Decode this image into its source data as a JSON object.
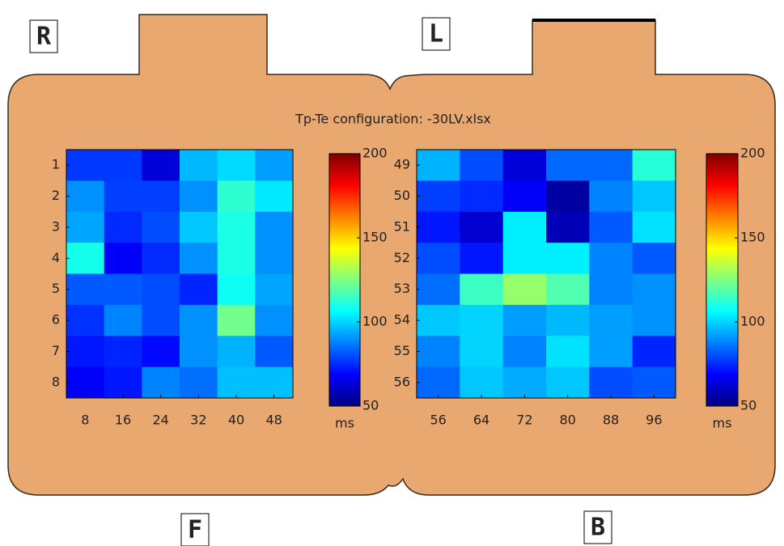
{
  "title": "Tp-Te configuration: -30LV.xlsx",
  "corner_labels": [
    "R",
    "L",
    "F",
    "B"
  ],
  "chart_data": [
    {
      "type": "heatmap",
      "colormap": "jet",
      "x": [
        8,
        16,
        24,
        32,
        40,
        48
      ],
      "y": [
        1,
        2,
        3,
        4,
        5,
        6,
        7,
        8
      ],
      "values": [
        [
          77,
          77,
          63,
          96,
          101,
          92
        ],
        [
          90,
          78,
          78,
          90,
          113,
          103
        ],
        [
          93,
          75,
          80,
          98,
          110,
          90
        ],
        [
          109,
          68,
          75,
          90,
          110,
          90
        ],
        [
          82,
          82,
          80,
          74,
          108,
          93
        ],
        [
          76,
          88,
          80,
          90,
          123,
          90
        ],
        [
          72,
          74,
          70,
          90,
          95,
          82
        ],
        [
          68,
          72,
          88,
          85,
          97,
          97
        ]
      ],
      "zlim": [
        50,
        200
      ],
      "zticks": [
        50,
        100,
        150,
        200
      ],
      "zlabel": "ms"
    },
    {
      "type": "heatmap",
      "colormap": "jet",
      "x": [
        56,
        64,
        72,
        80,
        88,
        96
      ],
      "y": [
        49,
        50,
        51,
        52,
        53,
        54,
        55,
        56
      ],
      "values": [
        [
          95,
          80,
          63,
          84,
          84,
          112
        ],
        [
          78,
          75,
          68,
          55,
          88,
          98
        ],
        [
          72,
          62,
          104,
          58,
          82,
          102
        ],
        [
          80,
          72,
          104,
          104,
          88,
          82
        ],
        [
          85,
          115,
          128,
          118,
          88,
          90
        ],
        [
          98,
          100,
          92,
          96,
          92,
          90
        ],
        [
          88,
          100,
          88,
          102,
          92,
          74
        ],
        [
          84,
          98,
          94,
          98,
          80,
          82
        ]
      ],
      "zlim": [
        50,
        200
      ],
      "zticks": [
        50,
        100,
        150,
        200
      ],
      "zlabel": "ms"
    }
  ]
}
